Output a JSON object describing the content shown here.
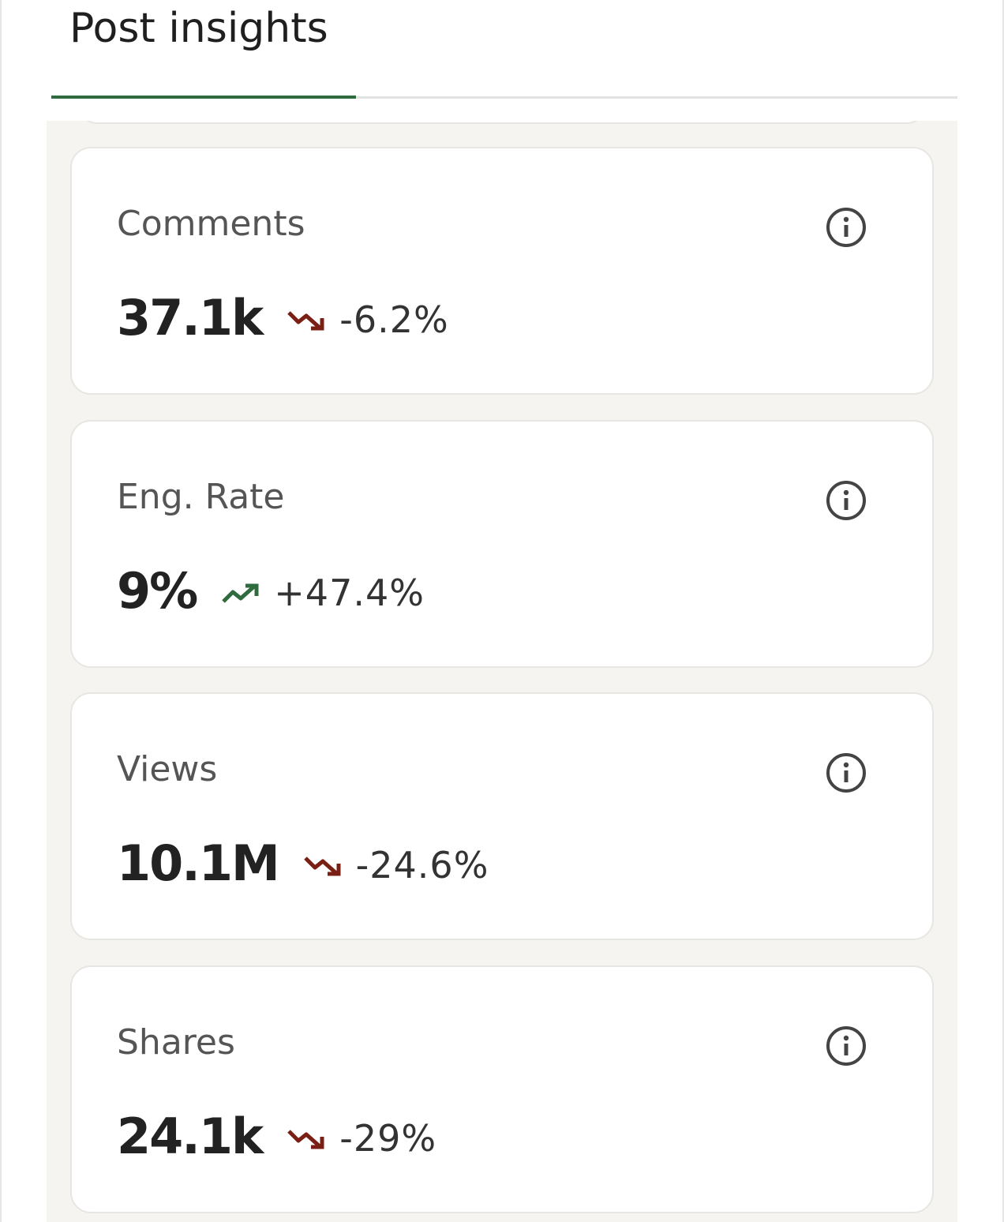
{
  "header": {
    "title": "Post insights"
  },
  "cards": [
    {
      "label": "Comments",
      "value": "37.1k",
      "change": "-6.2%"
    },
    {
      "label": "Eng. Rate",
      "value": "9%",
      "change": "+47.4%"
    },
    {
      "label": "Views",
      "value": "10.1M",
      "change": "-24.6%"
    },
    {
      "label": "Shares",
      "value": "24.1k",
      "change": "-29%"
    }
  ]
}
